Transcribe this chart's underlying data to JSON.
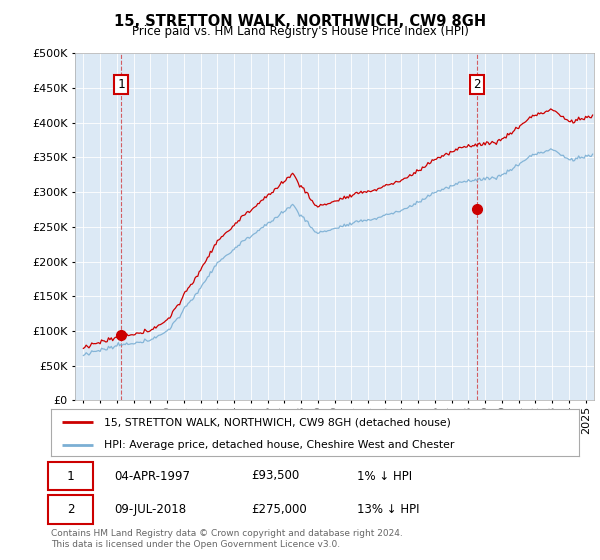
{
  "title": "15, STRETTON WALK, NORTHWICH, CW9 8GH",
  "subtitle": "Price paid vs. HM Land Registry's House Price Index (HPI)",
  "legend_line1": "15, STRETTON WALK, NORTHWICH, CW9 8GH (detached house)",
  "legend_line2": "HPI: Average price, detached house, Cheshire West and Chester",
  "annotation1_label": "1",
  "annotation1_date": "04-APR-1997",
  "annotation1_price": "£93,500",
  "annotation1_hpi": "1% ↓ HPI",
  "annotation2_label": "2",
  "annotation2_date": "09-JUL-2018",
  "annotation2_price": "£275,000",
  "annotation2_hpi": "13% ↓ HPI",
  "footnote": "Contains HM Land Registry data © Crown copyright and database right 2024.\nThis data is licensed under the Open Government Licence v3.0.",
  "hpi_color": "#7bafd4",
  "price_color": "#cc0000",
  "annotation_color": "#cc0000",
  "background_color": "#ffffff",
  "plot_bg_color": "#dce9f5",
  "grid_color": "#ffffff",
  "ylim": [
    0,
    500000
  ],
  "yticks": [
    0,
    50000,
    100000,
    150000,
    200000,
    250000,
    300000,
    350000,
    400000,
    450000,
    500000
  ],
  "ytick_labels": [
    "£0",
    "£50K",
    "£100K",
    "£150K",
    "£200K",
    "£250K",
    "£300K",
    "£350K",
    "£400K",
    "£450K",
    "£500K"
  ],
  "sale1_x": 1997.26,
  "sale1_y": 93500,
  "sale2_x": 2018.52,
  "sale2_y": 275000,
  "xlim": [
    1994.5,
    2025.5
  ]
}
